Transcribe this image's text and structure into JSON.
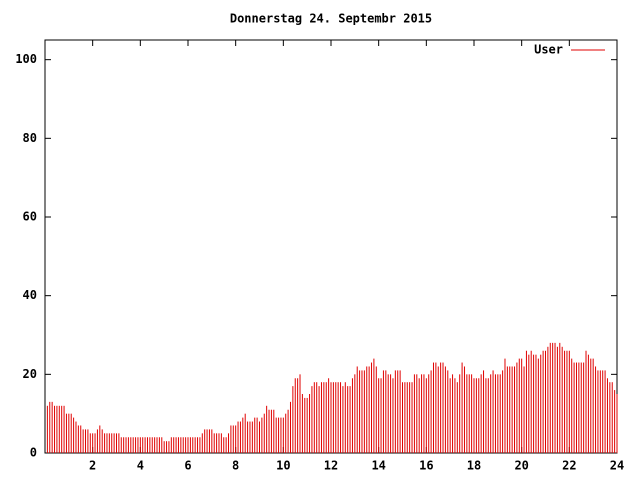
{
  "chart_data": {
    "type": "impulses",
    "title": "Donnerstag 24. Septembr 2015",
    "xlim": [
      0,
      24
    ],
    "xticks": [
      2,
      4,
      6,
      8,
      10,
      12,
      14,
      16,
      18,
      20,
      22,
      24
    ],
    "ylim": [
      0,
      105
    ],
    "yticks": [
      0,
      20,
      40,
      60,
      80,
      100
    ],
    "legend": "top right",
    "x": [
      0.1,
      0.2,
      0.3,
      0.4,
      0.5,
      0.6,
      0.7,
      0.8,
      0.9,
      1.0,
      1.1,
      1.2,
      1.3,
      1.4,
      1.5,
      1.6,
      1.7,
      1.8,
      1.9,
      2.0,
      2.1,
      2.2,
      2.3,
      2.4,
      2.5,
      2.6,
      2.7,
      2.8,
      2.9,
      3.0,
      3.1,
      3.2,
      3.3,
      3.4,
      3.5,
      3.6,
      3.7,
      3.8,
      3.9,
      4.0,
      4.1,
      4.2,
      4.3,
      4.4,
      4.5,
      4.6,
      4.7,
      4.8,
      4.9,
      5.0,
      5.1,
      5.2,
      5.3,
      5.4,
      5.5,
      5.6,
      5.7,
      5.8,
      5.9,
      6.0,
      6.1,
      6.2,
      6.3,
      6.4,
      6.5,
      6.6,
      6.7,
      6.8,
      6.9,
      7.0,
      7.1,
      7.2,
      7.3,
      7.4,
      7.5,
      7.6,
      7.7,
      7.8,
      7.9,
      8.0,
      8.1,
      8.2,
      8.3,
      8.4,
      8.5,
      8.6,
      8.7,
      8.8,
      8.9,
      9.0,
      9.1,
      9.2,
      9.3,
      9.4,
      9.5,
      9.6,
      9.7,
      9.8,
      9.9,
      10.0,
      10.1,
      10.2,
      10.3,
      10.4,
      10.5,
      10.6,
      10.7,
      10.8,
      10.9,
      11.0,
      11.1,
      11.2,
      11.3,
      11.4,
      11.5,
      11.6,
      11.7,
      11.8,
      11.9,
      12.0,
      12.1,
      12.2,
      12.3,
      12.4,
      12.5,
      12.6,
      12.7,
      12.8,
      12.9,
      13.0,
      13.1,
      13.2,
      13.3,
      13.4,
      13.5,
      13.6,
      13.7,
      13.8,
      13.9,
      14.0,
      14.1,
      14.2,
      14.3,
      14.4,
      14.5,
      14.6,
      14.7,
      14.8,
      14.9,
      15.0,
      15.1,
      15.2,
      15.3,
      15.4,
      15.5,
      15.6,
      15.7,
      15.8,
      15.9,
      16.0,
      16.1,
      16.2,
      16.3,
      16.4,
      16.5,
      16.6,
      16.7,
      16.8,
      16.9,
      17.0,
      17.1,
      17.2,
      17.3,
      17.4,
      17.5,
      17.6,
      17.7,
      17.8,
      17.9,
      18.0,
      18.1,
      18.2,
      18.3,
      18.4,
      18.5,
      18.6,
      18.7,
      18.8,
      18.9,
      19.0,
      19.1,
      19.2,
      19.3,
      19.4,
      19.5,
      19.6,
      19.7,
      19.8,
      19.9,
      20.0,
      20.1,
      20.2,
      20.3,
      20.4,
      20.5,
      20.6,
      20.7,
      20.8,
      20.9,
      21.0,
      21.1,
      21.2,
      21.3,
      21.4,
      21.5,
      21.6,
      21.7,
      21.8,
      21.9,
      22.0,
      22.1,
      22.2,
      22.3,
      22.4,
      22.5,
      22.6,
      22.7,
      22.8,
      22.9,
      23.0,
      23.1,
      23.2,
      23.3,
      23.4,
      23.5,
      23.6,
      23.7,
      23.8,
      23.9,
      24.0
    ],
    "series": [
      {
        "name": "User",
        "color": "#e00000",
        "values": [
          12,
          13,
          13,
          12,
          12,
          12,
          12,
          12,
          10,
          10,
          10,
          9,
          8,
          7,
          7,
          6,
          6,
          6,
          5,
          5,
          5,
          6,
          7,
          6,
          5,
          5,
          5,
          5,
          5,
          5,
          5,
          4,
          4,
          4,
          4,
          4,
          4,
          4,
          4,
          4,
          4,
          4,
          4,
          4,
          4,
          4,
          4,
          4,
          4,
          3,
          3,
          3,
          4,
          4,
          4,
          4,
          4,
          4,
          4,
          4,
          4,
          4,
          4,
          4,
          4,
          5,
          6,
          6,
          6,
          6,
          5,
          5,
          5,
          5,
          4,
          4,
          5,
          7,
          7,
          7,
          8,
          8,
          9,
          10,
          8,
          8,
          8,
          9,
          9,
          8,
          9,
          10,
          12,
          11,
          11,
          11,
          9,
          9,
          9,
          9,
          10,
          11,
          13,
          17,
          19,
          19,
          20,
          15,
          14,
          14,
          15,
          17,
          18,
          18,
          17,
          18,
          18,
          18,
          19,
          18,
          18,
          18,
          18,
          18,
          17,
          18,
          17,
          17,
          19,
          20,
          22,
          21,
          21,
          21,
          22,
          22,
          23,
          24,
          22,
          19,
          19,
          21,
          21,
          20,
          20,
          19,
          21,
          21,
          21,
          18,
          18,
          18,
          18,
          18,
          20,
          20,
          19,
          20,
          20,
          19,
          20,
          21,
          23,
          23,
          22,
          23,
          23,
          22,
          21,
          19,
          20,
          19,
          18,
          20,
          23,
          22,
          20,
          20,
          20,
          19,
          19,
          19,
          20,
          21,
          19,
          19,
          20,
          21,
          20,
          20,
          20,
          21,
          24,
          22,
          22,
          22,
          22,
          23,
          24,
          24,
          22,
          26,
          25,
          26,
          25,
          25,
          24,
          25,
          26,
          26,
          27,
          28,
          28,
          28,
          27,
          28,
          27,
          26,
          26,
          26,
          24,
          23,
          23,
          23,
          23,
          23,
          26,
          25,
          24,
          24,
          22,
          21,
          21,
          21,
          21,
          19,
          18,
          18,
          16,
          15
        ]
      }
    ]
  }
}
